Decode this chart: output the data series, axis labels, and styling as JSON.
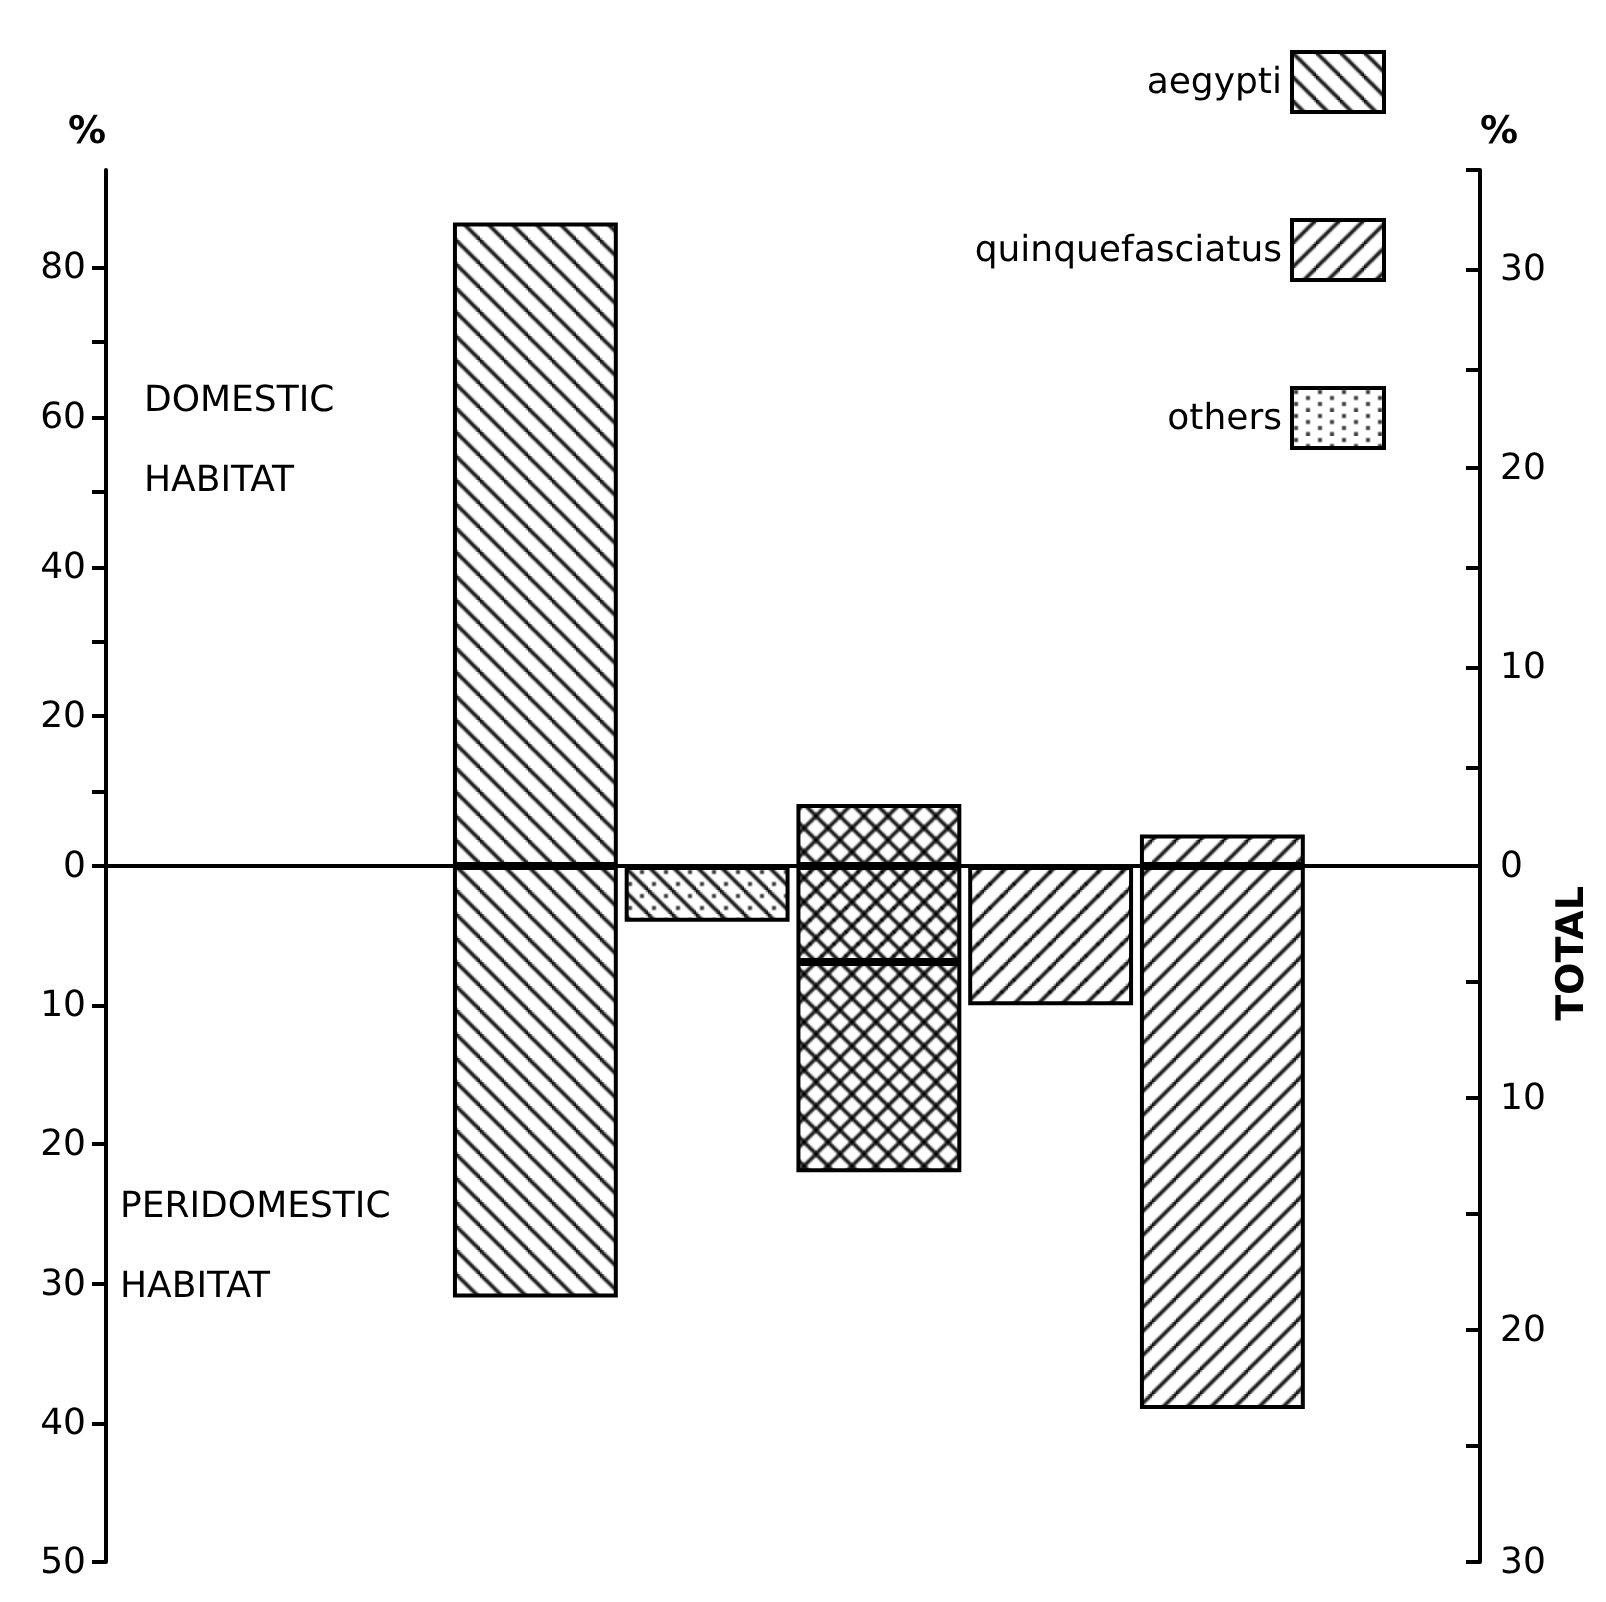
{
  "chart_data": [
    {
      "type": "bar",
      "categories": [
        null,
        null,
        null,
        null,
        null,
        null,
        null,
        null
      ],
      "series": [
        {
          "name": "aegypti",
          "color": "#000000",
          "values": [
            null,
            null,
            86,
            null,
            null,
            null,
            null,
            null
          ]
        },
        {
          "name": "quinquefasciatus",
          "color": "#000000",
          "values": [
            null,
            null,
            null,
            null,
            null,
            null,
            4.2,
            null
          ]
        },
        {
          "name": "others",
          "color": "#000000",
          "values": [
            null,
            null,
            null,
            null,
            null,
            null,
            null,
            null
          ]
        },
        {
          "color": "#000000",
          "values": [
            null,
            null,
            null,
            null,
            null,
            null,
            null,
            null
          ]
        },
        {
          "color": "#000000",
          "values": [
            null,
            null,
            null,
            null,
            8.3,
            null,
            null,
            null
          ]
        }
      ],
      "ylabel": "%",
      "y2label": "%",
      "ylim": [
        0,
        93
      ],
      "yticks": [
        0,
        {
          "value": 10,
          "label": null
        },
        20,
        {
          "value": 30,
          "label": null
        },
        40,
        {
          "value": 50,
          "label": null
        },
        60,
        {
          "value": 70,
          "label": null
        },
        80
      ],
      "y2lim": [
        0,
        35
      ],
      "y2ticks": [
        0,
        {
          "value": 5,
          "label": null
        },
        10,
        {
          "value": 15,
          "label": null
        },
        20,
        {
          "value": 25,
          "label": null
        },
        30,
        {
          "value": 35,
          "label": null
        }
      ],
      "annotations": [
        "DOMESTIC HABITAT"
      ],
      "legend": "top right"
    },
    {
      "type": "bar",
      "categories": [
        null,
        null,
        null,
        null,
        null,
        null,
        null,
        null
      ],
      "stacked": true,
      "series": [
        {
          "color": "#000000",
          "values": [
            null,
            null,
            31,
            null,
            null,
            null,
            null,
            null
          ]
        },
        {
          "color": "#000000",
          "values": [
            null,
            null,
            null,
            null,
            null,
            null,
            39,
            null
          ]
        },
        {
          "color": "#000000",
          "values": [
            null,
            null,
            null,
            null,
            null,
            null,
            null,
            null
          ]
        },
        {
          "color": "#000000",
          "values": [
            null,
            null,
            null,
            null,
            6.9,
            null,
            null,
            null
          ]
        },
        {
          "color": "#000000",
          "values": [
            null,
            null,
            null,
            null,
            15.1,
            null,
            null,
            null
          ]
        },
        {
          "color": "#000000",
          "values": [
            null,
            null,
            null,
            4,
            null,
            null,
            null,
            null
          ]
        },
        {
          "color": "#000000",
          "values": [
            null,
            null,
            null,
            null,
            null,
            10,
            null,
            null
          ]
        }
      ],
      "y2label": "TOTAL",
      "ylim": [
        50,
        0
      ],
      "yticks": [
        10,
        20,
        30,
        40,
        50
      ],
      "y2lim": [
        30,
        0
      ],
      "y2ticks": [
        {
          "value": 5,
          "label": null
        },
        10,
        {
          "value": 15,
          "label": null
        },
        20,
        {
          "value": 25,
          "label": null
        },
        30
      ],
      "annotations": [
        "PERIDOMESTIC HABITAT"
      ]
    }
  ]
}
